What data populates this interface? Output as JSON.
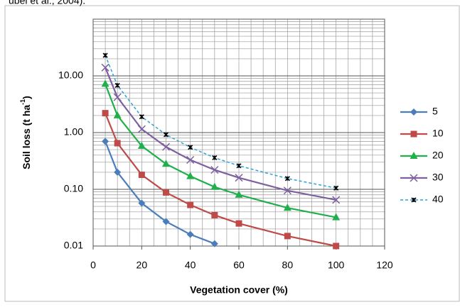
{
  "chart_data": {
    "type": "line",
    "caption": "ubel et al., 2004).",
    "xlabel": "Vegetation cover (%)",
    "ylabel": {
      "text": "Soil loss (t ha",
      "sup": "-1",
      "tail": ")"
    },
    "xlim": [
      0,
      120
    ],
    "xticks": [
      0,
      20,
      40,
      60,
      80,
      100,
      120
    ],
    "ylim": [
      0.01,
      100
    ],
    "yticks": [
      {
        "value": 0.01,
        "label": "0.01"
      },
      {
        "value": 0.1,
        "label": "0.10"
      },
      {
        "value": 1,
        "label": "1.00"
      },
      {
        "value": 10,
        "label": "10.00"
      }
    ],
    "log_y": true,
    "grid": true,
    "minor_grid": true,
    "legend": "right",
    "series": [
      {
        "name": "5",
        "color": "#4a7ebb",
        "marker": "diamond",
        "dash": false,
        "x": [
          5,
          10,
          20,
          30,
          40,
          50
        ],
        "values": [
          0.7,
          0.2,
          0.057,
          0.027,
          0.016,
          0.011
        ]
      },
      {
        "name": "10",
        "color": "#be4b48",
        "marker": "square",
        "dash": false,
        "x": [
          5,
          10,
          20,
          30,
          40,
          50,
          60,
          80,
          100
        ],
        "values": [
          2.2,
          0.65,
          0.18,
          0.088,
          0.053,
          0.035,
          0.025,
          0.015,
          0.01
        ]
      },
      {
        "name": "20",
        "color": "#1fb04c",
        "marker": "triangle",
        "dash": false,
        "x": [
          5,
          10,
          20,
          30,
          40,
          50,
          60,
          80,
          100
        ],
        "values": [
          7.2,
          2.0,
          0.58,
          0.28,
          0.17,
          0.11,
          0.08,
          0.047,
          0.032
        ]
      },
      {
        "name": "30",
        "color": "#7d60a0",
        "marker": "x",
        "dash": false,
        "x": [
          5,
          10,
          20,
          30,
          40,
          50,
          60,
          80,
          100
        ],
        "values": [
          14,
          4.2,
          1.15,
          0.56,
          0.33,
          0.22,
          0.16,
          0.095,
          0.065
        ]
      },
      {
        "name": "40",
        "color": "#2aa4d8",
        "marker": "star",
        "dash": true,
        "x": [
          5,
          10,
          20,
          30,
          40,
          50,
          60,
          80,
          100
        ],
        "values": [
          23,
          6.8,
          1.9,
          0.92,
          0.55,
          0.36,
          0.26,
          0.155,
          0.105
        ]
      }
    ]
  }
}
